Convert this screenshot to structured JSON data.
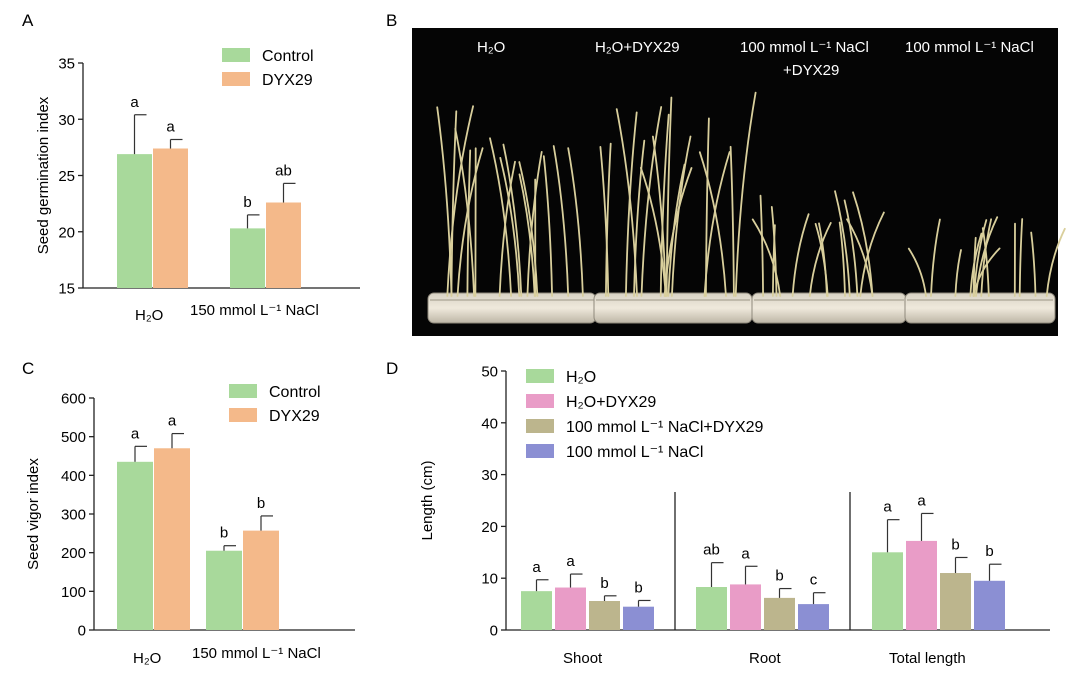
{
  "panels": {
    "A": {
      "letter": "A",
      "chart_data": {
        "type": "bar",
        "ylabel": "Seed germination index",
        "ylim": [
          15,
          35
        ],
        "yticks": [
          15,
          20,
          25,
          30,
          35
        ],
        "categories": [
          "H₂O",
          "150 mmol L⁻¹ NaCl"
        ],
        "series": [
          {
            "name": "Control",
            "color": "#a8d99b",
            "values": [
              26.9,
              20.3
            ],
            "errors": [
              3.5,
              1.2
            ],
            "letters": [
              "a",
              "b"
            ]
          },
          {
            "name": "DYX29",
            "color": "#f4b98a",
            "values": [
              27.4,
              22.6
            ],
            "errors": [
              0.8,
              1.7
            ],
            "letters": [
              "a",
              "ab"
            ]
          }
        ],
        "legend": "top-right"
      }
    },
    "B": {
      "letter": "B",
      "photo_labels": [
        "H₂O",
        "H₂O+DYX29",
        "100 mmol L⁻¹ NaCl",
        "+DYX29",
        "100 mmol L⁻¹ NaCl"
      ]
    },
    "C": {
      "letter": "C",
      "chart_data": {
        "type": "bar",
        "ylabel": "Seed vigor index",
        "ylim": [
          0,
          600
        ],
        "yticks": [
          0,
          100,
          200,
          300,
          400,
          500,
          600
        ],
        "categories": [
          "H₂O",
          "150 mmol L⁻¹ NaCl"
        ],
        "series": [
          {
            "name": "Control",
            "color": "#a8d99b",
            "values": [
              435,
              205
            ],
            "errors": [
              40,
              13
            ],
            "letters": [
              "a",
              "b"
            ]
          },
          {
            "name": "DYX29",
            "color": "#f4b98a",
            "values": [
              470,
              257
            ],
            "errors": [
              38,
              38
            ],
            "letters": [
              "a",
              "b"
            ]
          }
        ],
        "legend": "top-right"
      }
    },
    "D": {
      "letter": "D",
      "chart_data": {
        "type": "bar",
        "ylabel": "Length (cm)",
        "ylim": [
          0,
          50
        ],
        "yticks": [
          0,
          10,
          20,
          30,
          40,
          50
        ],
        "categories": [
          "Shoot",
          "Root",
          "Total length"
        ],
        "series": [
          {
            "name": "H₂O",
            "color": "#a8d99b",
            "values": [
              7.5,
              8.3,
              15.0
            ],
            "errors": [
              2.2,
              4.7,
              6.3
            ],
            "letters": [
              "a",
              "ab",
              "a"
            ]
          },
          {
            "name": "H₂O+DYX29",
            "color": "#e99cc7",
            "values": [
              8.2,
              8.8,
              17.2
            ],
            "errors": [
              2.6,
              3.5,
              5.3
            ],
            "letters": [
              "a",
              "a",
              "a"
            ]
          },
          {
            "name": "100 mmol L⁻¹ NaCl+DYX29",
            "color": "#bcb58d",
            "values": [
              5.6,
              6.2,
              11.0
            ],
            "errors": [
              1.0,
              1.8,
              3.0
            ],
            "letters": [
              "b",
              "b",
              "b"
            ]
          },
          {
            "name": "100 mmol L⁻¹ NaCl",
            "color": "#8b8fd3",
            "values": [
              4.5,
              5.0,
              9.5
            ],
            "errors": [
              1.2,
              2.2,
              3.2
            ],
            "letters": [
              "b",
              "c",
              "b"
            ]
          }
        ],
        "legend": "top-left"
      }
    }
  }
}
